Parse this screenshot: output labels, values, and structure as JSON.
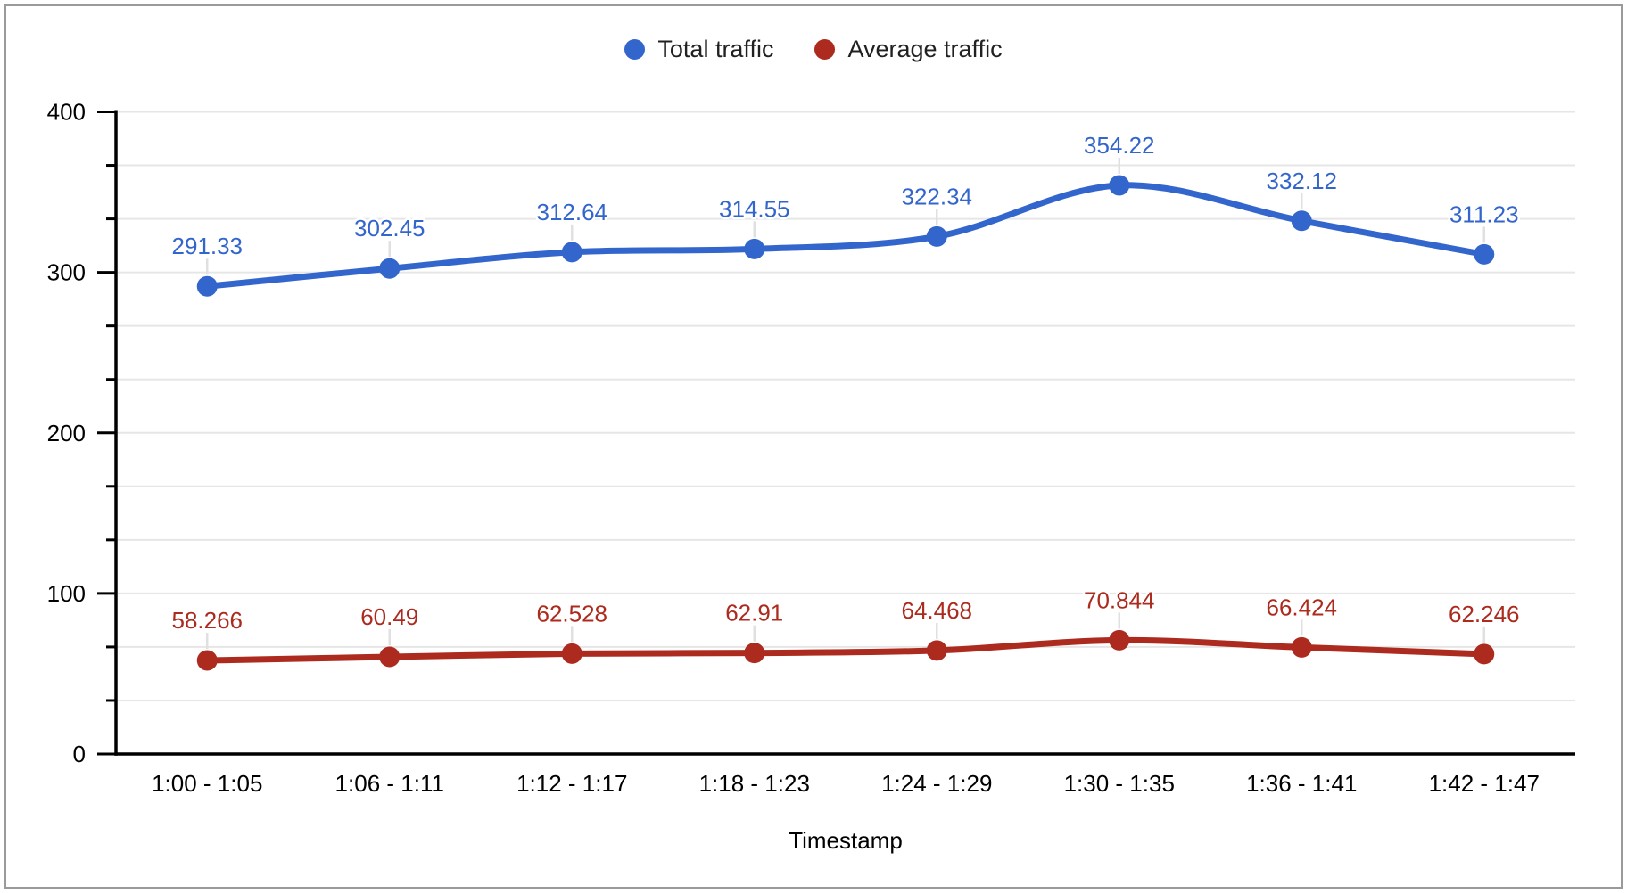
{
  "chart_data": {
    "type": "line",
    "smooth": true,
    "grid": true,
    "legend_position": "top",
    "x": [
      "1:00 - 1:05",
      "1:06 - 1:11",
      "1:12 - 1:17",
      "1:18 - 1:23",
      "1:24 - 1:29",
      "1:30 - 1:35",
      "1:36 - 1:41",
      "1:42 - 1:47"
    ],
    "series": [
      {
        "name": "Total traffic",
        "color": "#3366CC",
        "values": [
          291.33,
          302.45,
          312.64,
          314.55,
          322.34,
          354.22,
          332.12,
          311.23
        ],
        "labels": [
          "291.33",
          "302.45",
          "312.64",
          "314.55",
          "322.34",
          "354.22",
          "332.12",
          "311.23"
        ]
      },
      {
        "name": "Average traffic",
        "color": "#AC2B1E",
        "values": [
          58.266,
          60.49,
          62.528,
          62.91,
          64.468,
          70.844,
          66.424,
          62.246
        ],
        "labels": [
          "58.266",
          "60.49",
          "62.528",
          "62.91",
          "64.468",
          "70.844",
          "66.424",
          "62.246"
        ]
      }
    ],
    "xlabel": "Timestamp",
    "ylabel": "",
    "title": "",
    "ylim": [
      0,
      400
    ],
    "yticks": [
      0,
      100,
      200,
      300,
      400
    ],
    "ytick_labels": [
      "0",
      "100",
      "200",
      "300",
      "400"
    ],
    "minor_grid_step": 33.3333
  },
  "colors": {
    "grid": "#e6e6e6",
    "leader": "#e0e0e0",
    "axis": "#000000",
    "axis_text": "#000000",
    "frame_border": "#9a9a9a"
  }
}
